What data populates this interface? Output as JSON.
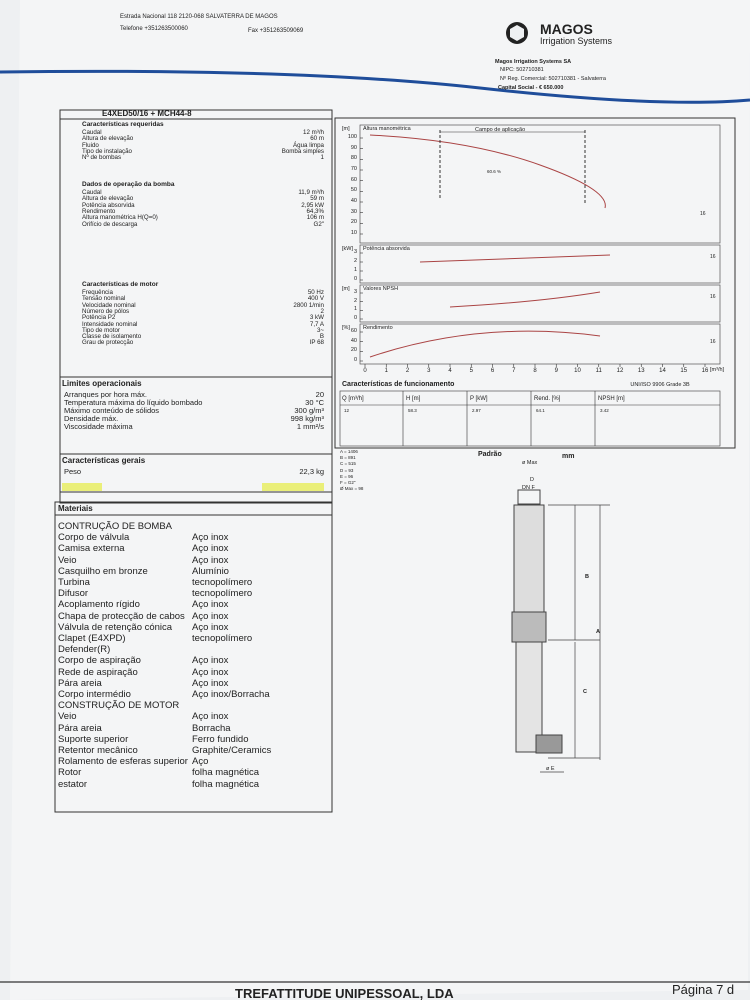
{
  "header": {
    "address": "Estrada Nacional 118    2120-068 SALVATERRA DE MAGOS",
    "phone": "Telefone  +351263500060",
    "fax": "Fax +351263509069",
    "logo": "MAGOS",
    "logo_subtitle": "Irrigation Systems",
    "company": "Magos Irrigation Systems SA",
    "nipc": "NIPC:  502710381",
    "registry": "Nº Reg. Comercial:  502710381 - Salvaterra",
    "capital": "Capital Social - €  650.000"
  },
  "model": "E4XED50/16 + MCH44-8",
  "sections": [
    {
      "title": "Características requeridas",
      "rows": [
        [
          "Caudal",
          "12 m³/h"
        ],
        [
          "Altura de elevação",
          "60 m"
        ],
        [
          "Fluido",
          "Água limpa"
        ],
        [
          "Tipo de instalação",
          "Bomba simples"
        ],
        [
          "Nº de bombas",
          "1"
        ]
      ]
    },
    {
      "title": "Dados de operação da bomba",
      "rows": [
        [
          "Caudal",
          "11,9 m³/h"
        ],
        [
          "Altura de elevação",
          "59 m"
        ],
        [
          "Potência absorvida",
          "2,95 kW"
        ],
        [
          "Rendimento",
          "64,3%"
        ],
        [
          "Altura manométrica H(Q=0)",
          "106 m"
        ],
        [
          "Orifício de descarga",
          "G2\""
        ]
      ]
    },
    {
      "title": "Características de motor",
      "rows": [
        [
          "Frequência",
          "50 Hz"
        ],
        [
          "Tensão nominal",
          "400 V"
        ],
        [
          "Velocidade nominal",
          "2800 1/min"
        ],
        [
          "Número de pólos",
          "2"
        ],
        [
          "Potência P2",
          "3 kW"
        ],
        [
          "Intensidade nominal",
          "7,7 A"
        ],
        [
          "Tipo de motor",
          "3~"
        ],
        [
          "Classe de isolamento",
          "B"
        ],
        [
          "Grau de protecção",
          "IP 68"
        ]
      ]
    },
    {
      "title": "Limites operacionais",
      "rows": [
        [
          "Arranques por hora máx.",
          "20"
        ],
        [
          "Temperatura máxima do líquido bombado",
          "30 °C"
        ],
        [
          "Máximo conteúdo de sólidos",
          "300 g/m³"
        ],
        [
          "Densidade máx.",
          "998 kg/m³"
        ],
        [
          "Viscosidade máxima",
          "1 mm²/s"
        ]
      ]
    },
    {
      "title": "Características gerais",
      "rows": [
        [
          "Peso",
          "22,3 kg"
        ]
      ]
    }
  ],
  "materials": {
    "title": "Materiais",
    "rows": [
      [
        "CONTRUÇÃO DE BOMBA"
      ],
      [
        "Corpo de válvula",
        "Aço inox"
      ],
      [
        "Camisa externa",
        "Aço inox"
      ],
      [
        "Veio",
        "Aço inox"
      ],
      [
        "Casquilho em bronze",
        "Alumínio"
      ],
      [
        "Turbina",
        "tecnopolímero"
      ],
      [
        "Difusor",
        "tecnopolímero"
      ],
      [
        "Acoplamento rígido",
        "Aço inox"
      ],
      [
        "Chapa de protecção de cabos",
        "Aço inox"
      ],
      [
        "Válvula de retenção cónica",
        "Aço inox"
      ],
      [
        "Clapet (E4XPD)",
        "tecnopolímero"
      ],
      [
        "Defender(R)"
      ],
      [
        "Corpo de aspiração",
        "Aço inox"
      ],
      [
        "Rede de aspiração",
        "Aço inox"
      ],
      [
        "Pára areia",
        "Aço inox"
      ],
      [
        "Corpo intermédio",
        "Aço inox/Borracha"
      ],
      [
        "CONSTRUÇÃO DE MOTOR"
      ],
      [
        "Veio",
        "Aço inox"
      ],
      [
        "Pára areia",
        "Borracha"
      ],
      [
        "Suporte superior",
        "Ferro fundido"
      ],
      [
        "Retentor mecânico",
        "Graphite/Ceramics"
      ],
      [
        "Rolamento de esferas superior",
        "Aço"
      ],
      [
        "Rotor",
        "folha magnética"
      ],
      [
        "estator",
        "folha magnética"
      ]
    ]
  },
  "performance": {
    "panels": [
      {
        "unit": "[m]",
        "label": "Altura manométrica",
        "yticks": [
          100,
          90,
          80,
          70,
          60,
          50,
          40,
          30,
          20,
          10
        ],
        "curve_label": "16"
      },
      {
        "unit": "[kW]",
        "label": "Potência absorvida",
        "yticks": [
          3,
          2,
          1,
          0
        ],
        "curve_label": "16"
      },
      {
        "unit": "[m]",
        "label": "Valores NPSH",
        "yticks": [
          3,
          2,
          1,
          0
        ],
        "curve_label": "16"
      },
      {
        "unit": "[%]",
        "label": "Rendimento",
        "yticks": [
          60,
          40,
          20,
          0
        ],
        "curve_label": "16"
      }
    ],
    "range_label": "Campo de aplicação",
    "point_label": "60.6 %",
    "xticks": [
      0,
      1,
      2,
      3,
      4,
      5,
      6,
      7,
      8,
      9,
      10,
      11,
      12,
      13,
      14,
      15,
      16
    ],
    "x_unit": "[m³/h]"
  },
  "operation": {
    "title": "Características de funcionamento",
    "standard": "UNI/ISO 9906 Grade 3B",
    "headers": [
      "Q [m³/h]",
      "H [m]",
      "P [kW]",
      "Rend. [%]",
      "NPSH [m]"
    ],
    "row": [
      "12",
      "58.3",
      "2.97",
      "64.1",
      "3.42"
    ]
  },
  "dimensions": {
    "list": [
      "A = 1406",
      "B = 891",
      "C = 515",
      "D = 93",
      "E = 96",
      "F = G2\"",
      "Ø Max = 98"
    ],
    "standard": "Padrão",
    "unit": "mm",
    "drawing": [
      "ø Max",
      "D",
      "DN F",
      "B",
      "A",
      "C",
      "ø E"
    ]
  },
  "footer": {
    "company": "TREFATTITUDE UNIPESSOAL, LDA",
    "page": "Página 7 d"
  }
}
